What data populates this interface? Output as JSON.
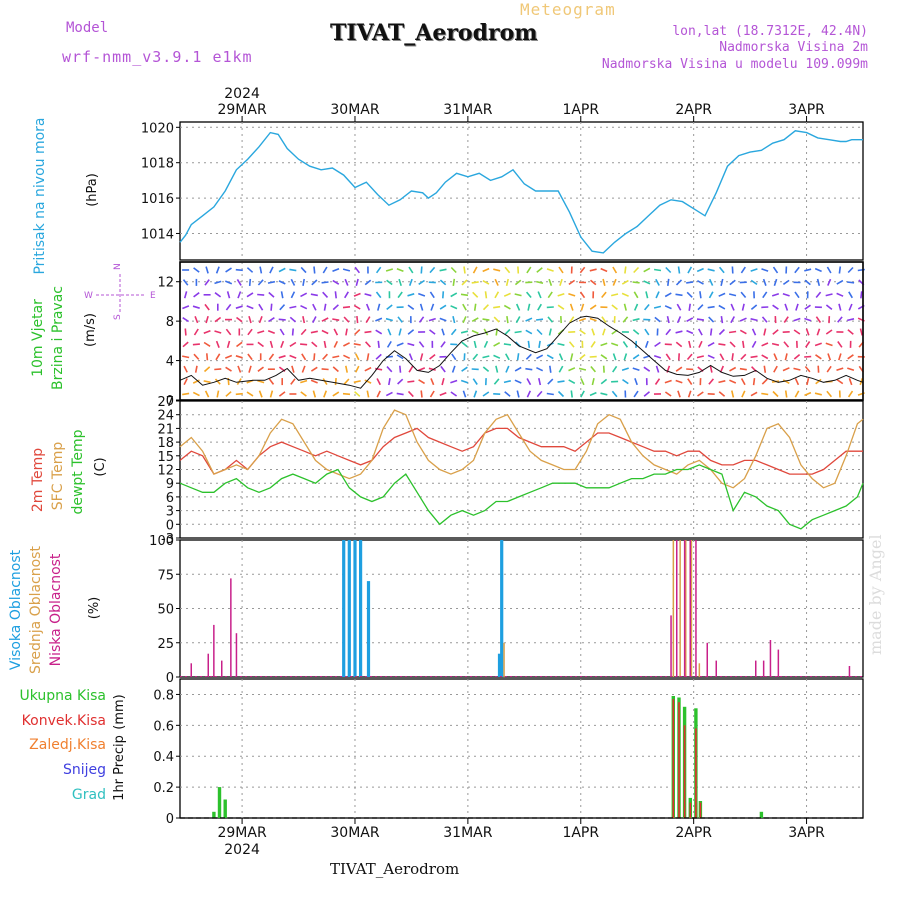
{
  "header": {
    "model_label": "Model",
    "model_name": "wrf-nmm_v3.9.1 e1km",
    "meteogram_label": "Meteogram",
    "station": "TIVAT_Aerodrom",
    "lonlat": "lon,lat (18.7312E, 42.4N)",
    "elevation_real": "Nadmorska Visina 2m",
    "elevation_model": "Nadmorska Visina u modelu 109.099m"
  },
  "footer_station": "TIVAT_Aerodrom",
  "watermark": "made by Angel",
  "colors": {
    "pressure": "#2aa7de",
    "t2m": "#e0483c",
    "tsfc": "#d9a04a",
    "dewpoint": "#2cc12c",
    "cloud_high": "#1e9fe0",
    "cloud_mid": "#d9a04a",
    "cloud_low": "#c8208a",
    "rain_total": "#2cc12c",
    "rain_conv": "#e03030",
    "rain_frozen": "#f08030",
    "snow": "#4040e0",
    "graupel": "#30c0c0",
    "wind_label": "#b455d6"
  },
  "time_axis": {
    "year": "2024",
    "days": [
      "29MAR",
      "30MAR",
      "31MAR",
      "1APR",
      "2APR",
      "3APR"
    ],
    "x_start_day": -0.55,
    "x_end_day": 5.5
  },
  "chart_data": [
    {
      "type": "line",
      "id": "pressure",
      "ylabel": "Pritisak na nivou mora",
      "unit": "(hPa)",
      "ylim": [
        1012.5,
        1020.3
      ],
      "yticks": [
        1014,
        1016,
        1018,
        1020
      ],
      "series": [
        {
          "x": [
            -0.55,
            -0.5,
            -0.45,
            -0.35,
            -0.25,
            -0.15,
            -0.05,
            0.05,
            0.15,
            0.25,
            0.32,
            0.4,
            0.5,
            0.6,
            0.7,
            0.8,
            0.9,
            1.0,
            1.1,
            1.2,
            1.3,
            1.4,
            1.5,
            1.6,
            1.65,
            1.72,
            1.8,
            1.9,
            2.0,
            2.1,
            2.2,
            2.3,
            2.4,
            2.5,
            2.6,
            2.7,
            2.8,
            2.9,
            3.0,
            3.1,
            3.2,
            3.3,
            3.4,
            3.5,
            3.6,
            3.7,
            3.8,
            3.9,
            4.0,
            4.1,
            4.2,
            4.3,
            4.4,
            4.5,
            4.6,
            4.7,
            4.8,
            4.9,
            5.0,
            5.1,
            5.2,
            5.3,
            5.35,
            5.4,
            5.5
          ],
          "y": [
            1013.5,
            1013.9,
            1014.5,
            1015.0,
            1015.5,
            1016.4,
            1017.6,
            1018.2,
            1018.9,
            1019.7,
            1019.6,
            1018.8,
            1018.2,
            1017.8,
            1017.6,
            1017.7,
            1017.3,
            1016.6,
            1016.9,
            1016.2,
            1015.6,
            1015.9,
            1016.4,
            1016.3,
            1016.0,
            1016.3,
            1016.9,
            1017.4,
            1017.2,
            1017.4,
            1017.0,
            1017.2,
            1017.6,
            1016.8,
            1016.4,
            1016.4,
            1016.4,
            1015.2,
            1013.8,
            1013.0,
            1012.9,
            1013.5,
            1014.0,
            1014.4,
            1015.0,
            1015.6,
            1015.9,
            1015.8,
            1015.4,
            1015.0,
            1016.3,
            1017.8,
            1018.4,
            1018.6,
            1018.7,
            1019.1,
            1019.3,
            1019.8,
            1019.7,
            1019.4,
            1019.3,
            1019.2,
            1019.2,
            1019.3,
            1019.3
          ]
        }
      ]
    },
    {
      "type": "line",
      "id": "wind",
      "ylabel": [
        "10m Vjetar",
        "Brzina i Pravac"
      ],
      "unit": "(m/s)",
      "compass": {
        "n": "N",
        "s": "S",
        "e": "E",
        "w": "W"
      },
      "ylim": [
        0,
        14
      ],
      "yticks": [
        0,
        4,
        8,
        12
      ],
      "speed_series": {
        "name": "speed",
        "x": [
          -0.55,
          -0.45,
          -0.35,
          -0.25,
          -0.15,
          -0.05,
          0.1,
          0.2,
          0.3,
          0.4,
          0.5,
          0.6,
          0.7,
          0.8,
          0.95,
          1.05,
          1.15,
          1.25,
          1.35,
          1.45,
          1.55,
          1.65,
          1.75,
          1.85,
          1.95,
          2.05,
          2.15,
          2.25,
          2.35,
          2.45,
          2.6,
          2.7,
          2.8,
          2.9,
          3.0,
          3.05,
          3.15,
          3.25,
          3.35,
          3.45,
          3.55,
          3.65,
          3.75,
          3.85,
          3.95,
          4.05,
          4.15,
          4.25,
          4.35,
          4.45,
          4.55,
          4.65,
          4.75,
          4.85,
          4.95,
          5.05,
          5.15,
          5.25,
          5.35,
          5.45,
          5.5
        ],
        "y": [
          2.0,
          2.5,
          1.5,
          1.8,
          2.2,
          1.8,
          2.0,
          2.0,
          2.5,
          3.2,
          2.0,
          2.2,
          2.0,
          1.8,
          1.5,
          1.2,
          2.5,
          4.0,
          5.0,
          4.2,
          3.0,
          2.8,
          3.5,
          4.8,
          6.0,
          6.5,
          6.8,
          7.2,
          6.5,
          5.5,
          4.8,
          5.2,
          6.5,
          7.8,
          8.4,
          8.5,
          8.3,
          7.5,
          6.8,
          6.0,
          5.0,
          4.0,
          3.0,
          2.6,
          2.5,
          2.8,
          3.5,
          2.8,
          2.4,
          2.5,
          3.0,
          2.2,
          1.8,
          2.0,
          2.5,
          2.2,
          1.8,
          2.0,
          2.5,
          2.0,
          1.8
        ]
      }
    },
    {
      "type": "line",
      "id": "temperature",
      "ylabel": [
        "2m Temp",
        "SFC Temp",
        "dewpt Temp"
      ],
      "unit": "(C)",
      "ylim": [
        -3,
        27
      ],
      "yticks": [
        -3,
        0,
        3,
        6,
        9,
        12,
        15,
        18,
        21,
        24,
        27
      ],
      "series": [
        {
          "name": "2m Temp",
          "x": [
            -0.55,
            -0.45,
            -0.35,
            -0.25,
            -0.15,
            -0.05,
            0.05,
            0.15,
            0.25,
            0.35,
            0.45,
            0.55,
            0.65,
            0.75,
            0.85,
            0.95,
            1.05,
            1.15,
            1.25,
            1.35,
            1.45,
            1.55,
            1.65,
            1.75,
            1.85,
            1.95,
            2.05,
            2.15,
            2.25,
            2.35,
            2.45,
            2.55,
            2.65,
            2.75,
            2.85,
            2.95,
            3.05,
            3.15,
            3.25,
            3.35,
            3.45,
            3.55,
            3.65,
            3.75,
            3.85,
            3.95,
            4.05,
            4.15,
            4.25,
            4.35,
            4.45,
            4.55,
            4.65,
            4.75,
            4.85,
            4.95,
            5.05,
            5.15,
            5.25,
            5.35,
            5.45,
            5.5
          ],
          "y": [
            14,
            16,
            15,
            11,
            12,
            14,
            12,
            15,
            17,
            18,
            17,
            16,
            15,
            16,
            15,
            14,
            13,
            14,
            17,
            19,
            20,
            21,
            19,
            18,
            17,
            16,
            17,
            20,
            21,
            21,
            19,
            18,
            17,
            17,
            17,
            16,
            18,
            20,
            20,
            19,
            18,
            17,
            16,
            16,
            15,
            16,
            16,
            14,
            13,
            13,
            14,
            14,
            13,
            12,
            11,
            11,
            11,
            12,
            14,
            16,
            16,
            16
          ]
        },
        {
          "name": "SFC Temp",
          "x": [
            -0.55,
            -0.45,
            -0.35,
            -0.25,
            -0.15,
            -0.05,
            0.05,
            0.15,
            0.25,
            0.35,
            0.45,
            0.55,
            0.65,
            0.75,
            0.85,
            0.95,
            1.05,
            1.15,
            1.25,
            1.35,
            1.45,
            1.55,
            1.65,
            1.75,
            1.85,
            1.95,
            2.05,
            2.15,
            2.25,
            2.35,
            2.45,
            2.55,
            2.65,
            2.75,
            2.85,
            2.95,
            3.05,
            3.15,
            3.25,
            3.35,
            3.45,
            3.55,
            3.65,
            3.75,
            3.85,
            3.95,
            4.05,
            4.15,
            4.25,
            4.35,
            4.45,
            4.55,
            4.65,
            4.75,
            4.85,
            4.95,
            5.05,
            5.15,
            5.25,
            5.35,
            5.45,
            5.5
          ],
          "y": [
            17,
            19,
            16,
            11,
            12,
            13,
            12,
            15,
            20,
            23,
            22,
            18,
            14,
            12,
            11,
            10,
            11,
            14,
            21,
            25,
            24,
            18,
            14,
            12,
            11,
            12,
            14,
            20,
            23,
            24,
            20,
            16,
            14,
            13,
            12,
            12,
            16,
            22,
            24,
            23,
            18,
            15,
            13,
            12,
            11,
            13,
            14,
            12,
            9,
            8,
            10,
            15,
            21,
            22,
            19,
            13,
            10,
            8,
            9,
            15,
            22,
            23
          ]
        },
        {
          "name": "dewpt Temp",
          "x": [
            -0.55,
            -0.45,
            -0.35,
            -0.25,
            -0.15,
            -0.05,
            0.05,
            0.15,
            0.25,
            0.35,
            0.45,
            0.55,
            0.65,
            0.75,
            0.85,
            0.95,
            1.05,
            1.15,
            1.25,
            1.35,
            1.45,
            1.55,
            1.65,
            1.75,
            1.85,
            1.95,
            2.05,
            2.15,
            2.25,
            2.35,
            2.45,
            2.55,
            2.65,
            2.75,
            2.85,
            2.95,
            3.05,
            3.15,
            3.25,
            3.35,
            3.45,
            3.55,
            3.65,
            3.75,
            3.85,
            3.95,
            4.05,
            4.15,
            4.25,
            4.35,
            4.45,
            4.55,
            4.65,
            4.75,
            4.85,
            4.95,
            5.05,
            5.15,
            5.25,
            5.35,
            5.45,
            5.5
          ],
          "y": [
            9,
            8,
            7,
            7,
            9,
            10,
            8,
            7,
            8,
            10,
            11,
            10,
            9,
            11,
            12,
            8,
            6,
            5,
            6,
            9,
            11,
            7,
            3,
            0,
            2,
            3,
            2,
            3,
            5,
            5,
            6,
            7,
            8,
            9,
            9,
            9,
            8,
            8,
            8,
            9,
            10,
            10,
            11,
            11,
            12,
            12,
            13,
            12,
            11,
            3,
            7,
            6,
            4,
            3,
            0,
            -1,
            1,
            2,
            3,
            4,
            6,
            9
          ]
        }
      ]
    },
    {
      "type": "bar",
      "id": "cloud",
      "ylabel": [
        "Visoka Oblacnost",
        "Srednja Oblacnost",
        "Niska Oblacnost"
      ],
      "unit": "(%)",
      "ylim": [
        0,
        100
      ],
      "yticks": [
        0,
        25,
        50,
        75,
        100
      ],
      "series": [
        {
          "name": "Visoka Oblacnost",
          "x": [
            0.9,
            0.95,
            1.0,
            1.05,
            1.12,
            2.28,
            2.3
          ],
          "values": [
            100,
            100,
            100,
            100,
            70,
            17,
            100
          ]
        },
        {
          "name": "Srednja Oblacnost",
          "x": [
            2.32,
            3.82,
            3.88,
            3.93,
            3.98,
            4.05
          ],
          "values": [
            25,
            100,
            100,
            100,
            100,
            10
          ]
        },
        {
          "name": "Niska Oblacnost",
          "x": [
            -0.45,
            -0.3,
            -0.25,
            -0.18,
            -0.1,
            -0.05,
            3.8,
            3.85,
            3.92,
            3.97,
            4.02,
            4.12,
            4.2,
            4.55,
            4.62,
            4.68,
            4.75,
            5.38
          ],
          "values": [
            10,
            17,
            38,
            12,
            72,
            32,
            45,
            100,
            100,
            100,
            100,
            25,
            12,
            12,
            12,
            27,
            20,
            8
          ]
        }
      ]
    },
    {
      "type": "bar",
      "id": "precip",
      "ylabel": "1hr Precip",
      "unit": "(mm)",
      "legend": [
        "Ukupna Kisa",
        "Konvek.Kisa",
        "Zaledj.Kisa",
        "Snijeg",
        "Grad"
      ],
      "ylim": [
        0,
        0.9
      ],
      "yticks": [
        0,
        0.2,
        0.4,
        0.6,
        0.8
      ],
      "series": [
        {
          "name": "Ukupna Kisa",
          "x": [
            -0.25,
            -0.2,
            -0.15,
            3.82,
            3.87,
            3.92,
            3.97,
            4.02,
            4.06,
            4.6
          ],
          "values": [
            0.04,
            0.2,
            0.12,
            0.79,
            0.78,
            0.72,
            0.13,
            0.71,
            0.11,
            0.04
          ]
        },
        {
          "name": "Konvek.Kisa",
          "x": [
            3.82,
            3.87,
            3.92,
            3.97,
            4.02,
            4.06
          ],
          "values": [
            0.77,
            0.75,
            0.6,
            0.1,
            0.58,
            0.1
          ]
        }
      ]
    }
  ]
}
